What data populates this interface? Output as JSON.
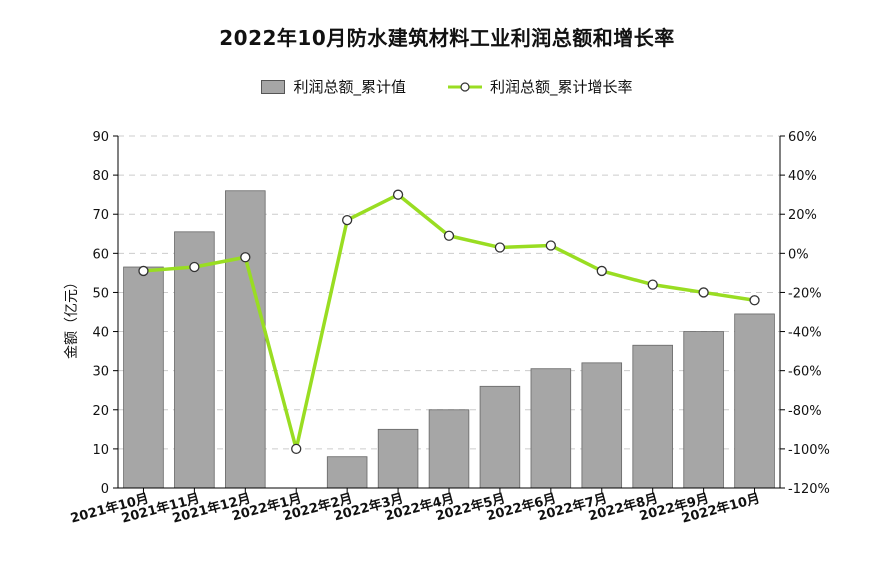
{
  "chart_data": {
    "type": "bar",
    "title": "2022年10月防水建筑材料工业利润总额和增长率",
    "ylabel": "金额（亿元）",
    "categories": [
      "2021年10月",
      "2021年11月",
      "2021年12月",
      "2022年1月",
      "2022年2月",
      "2022年3月",
      "2022年4月",
      "2022年5月",
      "2022年6月",
      "2022年7月",
      "2022年8月",
      "2022年9月",
      "2022年10月"
    ],
    "series": [
      {
        "name": "利润总额_累计值",
        "type": "bar",
        "axis": "left",
        "values": [
          56.5,
          65.5,
          76,
          null,
          8,
          15,
          20,
          26,
          30.5,
          32,
          36.5,
          40,
          44.5
        ]
      },
      {
        "name": "利润总额_累计增长率",
        "type": "line",
        "axis": "right",
        "values": [
          -9,
          -7,
          -2,
          -100,
          17,
          30,
          9,
          3,
          4,
          -9,
          -16,
          -20,
          -24
        ]
      }
    ],
    "ylim": [
      0,
      90
    ],
    "yticks": [
      "0",
      "10",
      "20",
      "30",
      "40",
      "50",
      "60",
      "70",
      "80",
      "90"
    ],
    "y2lim": [
      -120,
      60
    ],
    "y2ticks": [
      "-120%",
      "-100%",
      "-80%",
      "-60%",
      "-40%",
      "-20%",
      "0%",
      "20%",
      "40%",
      "60%"
    ],
    "grid": true,
    "legend_position": "top-center",
    "colors": {
      "bar": "#a6a6a6",
      "bar_stroke": "#666666",
      "line": "#99dd22",
      "marker_fill": "#ffffff",
      "marker_stroke": "#333333",
      "grid": "#cccccc"
    }
  }
}
